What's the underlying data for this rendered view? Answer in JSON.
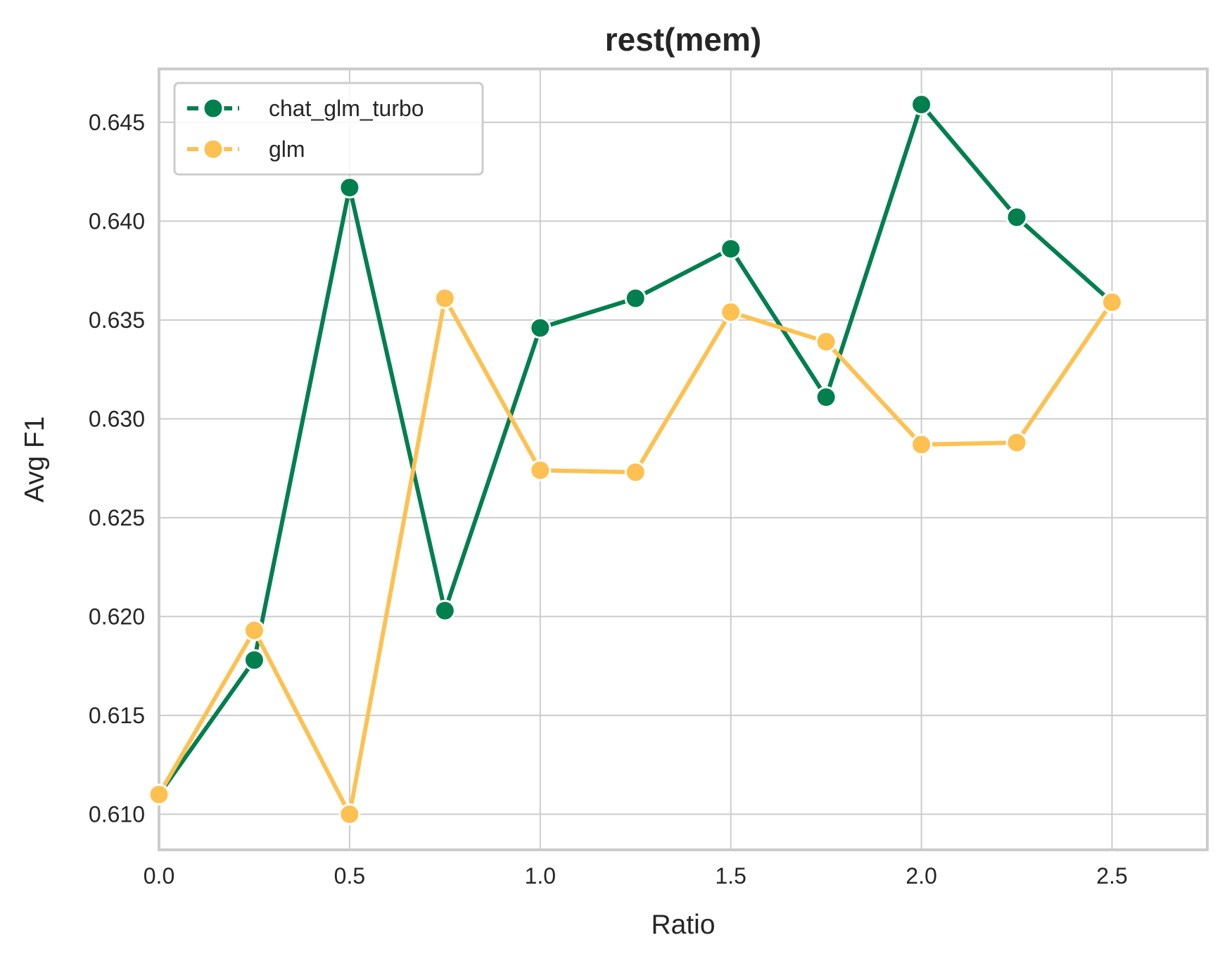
{
  "chart_data": {
    "type": "line",
    "title": "rest(mem)",
    "xlabel": "Ratio",
    "ylabel": "Avg F1",
    "xlim": [
      0.0,
      2.75
    ],
    "ylim": [
      0.6082,
      0.6477
    ],
    "xticks": [
      0.0,
      0.5,
      1.0,
      1.5,
      2.0,
      2.5
    ],
    "xtick_labels": [
      "0.0",
      "0.5",
      "1.0",
      "1.5",
      "2.0",
      "2.5"
    ],
    "yticks": [
      0.61,
      0.615,
      0.62,
      0.625,
      0.63,
      0.635,
      0.64,
      0.645
    ],
    "ytick_labels": [
      "0.610",
      "0.615",
      "0.620",
      "0.625",
      "0.630",
      "0.635",
      "0.640",
      "0.645"
    ],
    "grid": true,
    "legend_position": "top-left",
    "x": [
      0.0,
      0.25,
      0.5,
      0.75,
      1.0,
      1.25,
      1.5,
      1.75,
      2.0,
      2.25,
      2.5
    ],
    "series": [
      {
        "name": "chat_glm_turbo",
        "color": "#027f4f",
        "values": [
          0.611,
          0.6178,
          0.6417,
          0.6203,
          0.6346,
          0.6361,
          0.6386,
          0.6311,
          0.6459,
          0.6402,
          0.6359
        ]
      },
      {
        "name": "glm",
        "color": "#fdc152",
        "values": [
          0.611,
          0.6193,
          0.61,
          0.6361,
          0.6274,
          0.6273,
          0.6354,
          0.6339,
          0.6287,
          0.6288,
          0.6359
        ]
      }
    ]
  }
}
